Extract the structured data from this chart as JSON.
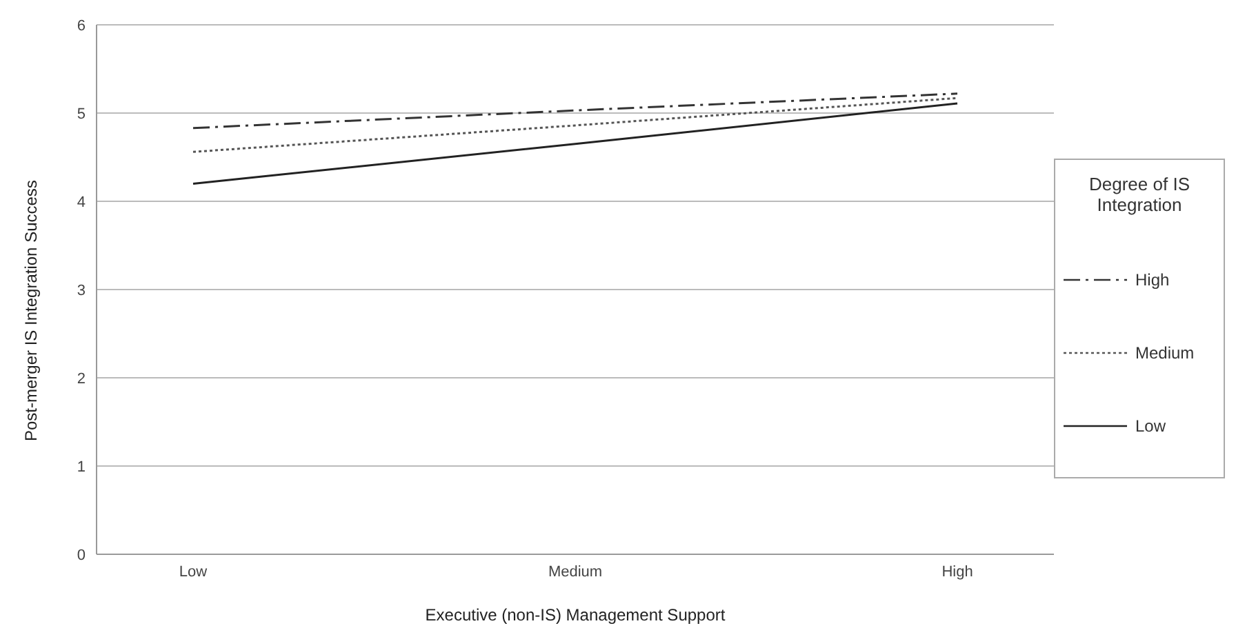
{
  "chart_data": {
    "type": "line",
    "xlabel": "Executive (non-IS) Management Support",
    "ylabel": "Post-merger IS Integration Success",
    "legend_title": "Degree of IS Integration",
    "categories": [
      "Low",
      "Medium",
      "High"
    ],
    "series": [
      {
        "name": "High",
        "color": "#333333",
        "line_style": "dashed",
        "values": [
          4.83,
          5.03,
          5.22
        ]
      },
      {
        "name": "Medium",
        "color": "#555555",
        "line_style": "dotted",
        "values": [
          4.56,
          4.86,
          5.17
        ]
      },
      {
        "name": "Low",
        "color": "#222222",
        "line_style": "solid",
        "values": [
          4.2,
          4.65,
          5.11
        ]
      }
    ],
    "ylim": [
      0,
      6
    ],
    "yticks": [
      0,
      1,
      2,
      3,
      4,
      5,
      6
    ],
    "grid": "y",
    "legend": "right",
    "marker": "none"
  }
}
